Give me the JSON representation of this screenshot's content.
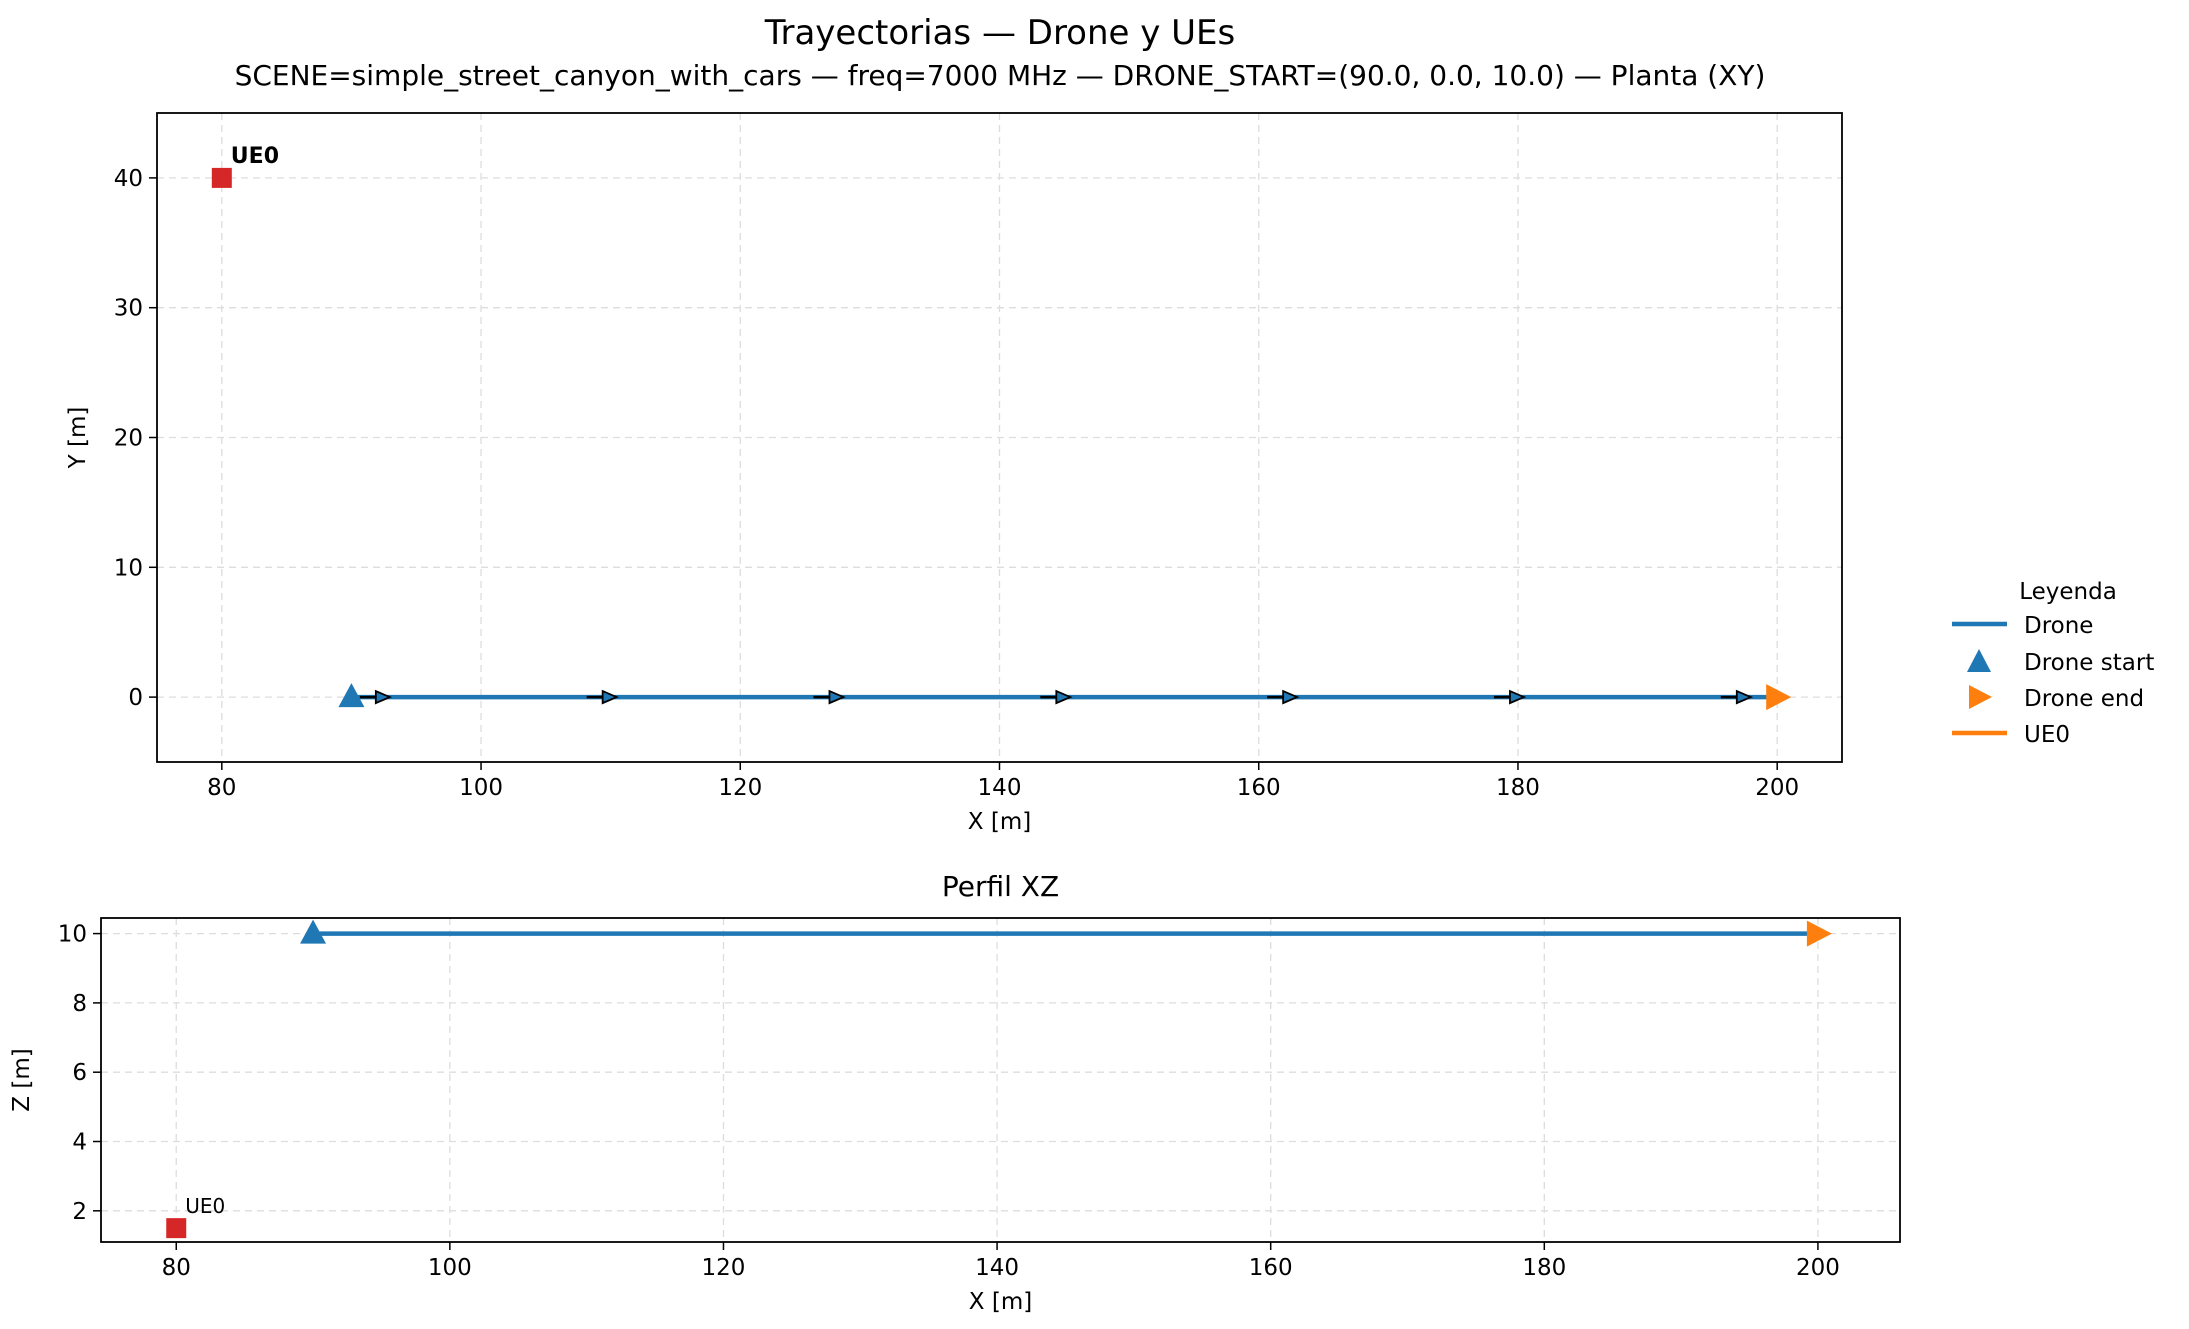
{
  "figure": {
    "title": "Trayectorias — Drone y UEs",
    "subtitle": "SCENE=simple_street_canyon_with_cars — freq=7000 MHz — DRONE_START=(90.0, 0.0, 10.0) — Planta (XY)"
  },
  "legend": {
    "title": "Leyenda",
    "placement": "right",
    "entries": [
      {
        "label": "Drone",
        "marker": "line",
        "color": "#1f77b4"
      },
      {
        "label": "Drone start",
        "marker": "triangle-up",
        "color": "#1f77b4"
      },
      {
        "label": "Drone end",
        "marker": "triangle-right",
        "color": "#ff7f0e"
      },
      {
        "label": "UE0",
        "marker": "line",
        "color": "#ff7f0e"
      }
    ]
  },
  "colors": {
    "drone": "#1f77b4",
    "drone_end": "#ff7f0e",
    "ue": "#d62728",
    "grid": "#dddddd",
    "arrow": "#000000"
  },
  "chart_data": [
    {
      "type": "line",
      "title": "",
      "xlabel": "X [m]",
      "ylabel": "Y [m]",
      "xlim": [
        75,
        205
      ],
      "ylim": [
        -5,
        45
      ],
      "xticks": [
        80,
        100,
        120,
        140,
        160,
        180,
        200
      ],
      "yticks": [
        0,
        10,
        20,
        30,
        40
      ],
      "grid": true,
      "series": [
        {
          "name": "Drone",
          "x": [
            90,
            200
          ],
          "y": [
            0,
            0
          ],
          "color": "#1f77b4"
        }
      ],
      "direction_arrows": [
        {
          "x": 92.5,
          "y": 0
        },
        {
          "x": 110,
          "y": 0
        },
        {
          "x": 127.5,
          "y": 0
        },
        {
          "x": 145,
          "y": 0
        },
        {
          "x": 162.5,
          "y": 0
        },
        {
          "x": 180,
          "y": 0
        },
        {
          "x": 197.5,
          "y": 0
        }
      ],
      "markers": [
        {
          "label": "Drone start",
          "x": 90,
          "y": 0,
          "shape": "triangle-up",
          "color": "#1f77b4"
        },
        {
          "label": "Drone end",
          "x": 200,
          "y": 0,
          "shape": "triangle-right",
          "color": "#ff7f0e"
        }
      ],
      "ues": [
        {
          "name": "UE0",
          "x": 80,
          "y": 40,
          "color": "#d62728"
        }
      ]
    },
    {
      "type": "line",
      "title": "Perfil XZ",
      "xlabel": "X [m]",
      "ylabel": "Z [m]",
      "xlim": [
        74.5,
        206
      ],
      "ylim": [
        1.1,
        10.45
      ],
      "xticks": [
        80,
        100,
        120,
        140,
        160,
        180,
        200
      ],
      "yticks": [
        2,
        4,
        6,
        8,
        10
      ],
      "grid": true,
      "series": [
        {
          "name": "Drone",
          "x": [
            90,
            200
          ],
          "y": [
            10,
            10
          ],
          "color": "#1f77b4"
        }
      ],
      "markers": [
        {
          "label": "Drone start",
          "x": 90,
          "y": 10,
          "shape": "triangle-up",
          "color": "#1f77b4"
        },
        {
          "label": "Drone end",
          "x": 200,
          "y": 10,
          "shape": "triangle-right",
          "color": "#ff7f0e"
        }
      ],
      "ues": [
        {
          "name": "UE0",
          "x": 80,
          "y": 1.5,
          "color": "#d62728"
        }
      ]
    }
  ]
}
